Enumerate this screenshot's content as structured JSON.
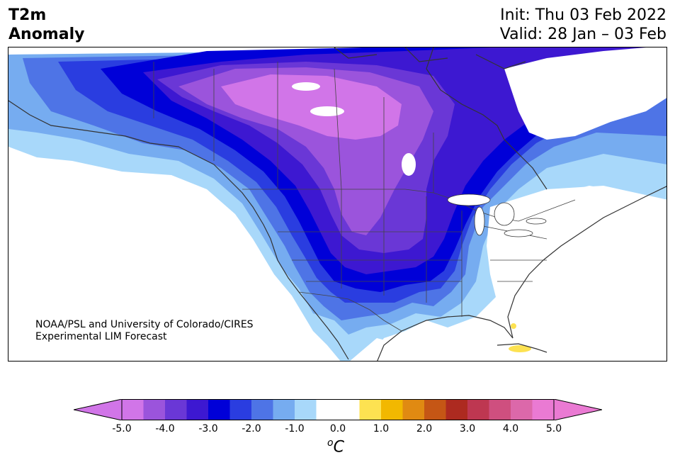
{
  "header": {
    "title_line1": "T2m",
    "title_line2": "Anomaly",
    "init": "Init: Thu 03 Feb 2022",
    "valid": "Valid: 28 Jan – 03 Feb"
  },
  "credit": {
    "line1": "NOAA/PSL and University of Colorado/CIRES",
    "line2": "Experimental LIM Forecast"
  },
  "colorbar": {
    "unit_base": "C",
    "unit_sup": "o",
    "ticks": [
      "-5.0",
      "-4.0",
      "-3.0",
      "-2.0",
      "-1.0",
      "0.0",
      "1.0",
      "2.0",
      "3.0",
      "4.0",
      "5.0"
    ],
    "colors": [
      "#d175e8",
      "#9b54dc",
      "#6a37d6",
      "#3d18d1",
      "#0000d8",
      "#2a3de0",
      "#4e74e6",
      "#76acf0",
      "#a8d8fa",
      "#ffffff",
      "#ffffff",
      "#fde251",
      "#f2b800",
      "#e08a12",
      "#c55615",
      "#ad2a20",
      "#be3751",
      "#cf4f7f",
      "#dc68aa",
      "#ea7ad3"
    ],
    "under_color": "#d175e8",
    "over_color": "#ea7ad3"
  },
  "map": {
    "region": "North America",
    "variable": "2m temperature anomaly",
    "coldest_center": "Northern Plains / Saskatchewan"
  }
}
